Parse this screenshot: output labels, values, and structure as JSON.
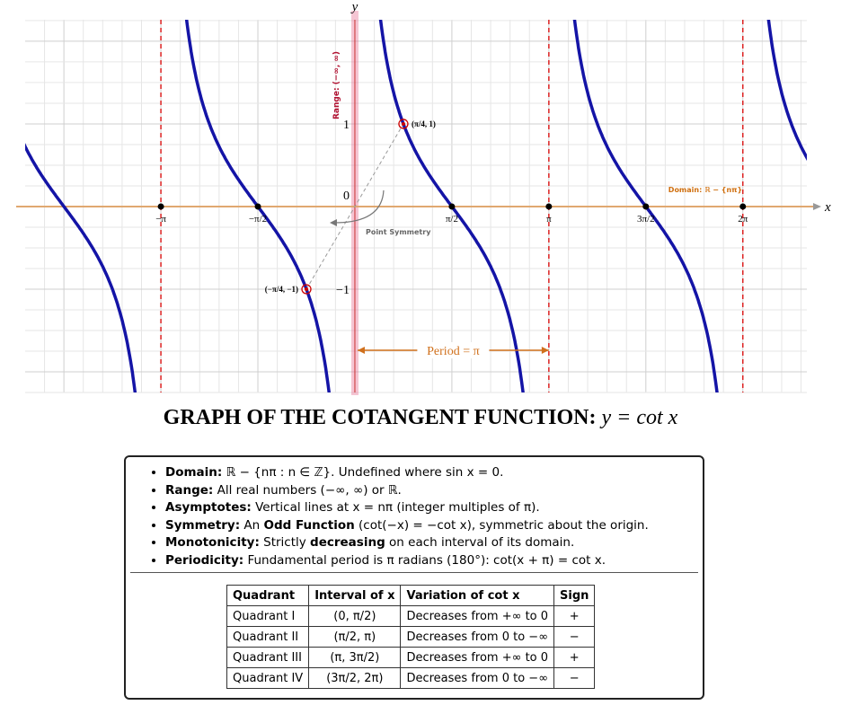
{
  "graph": {
    "axis_x": "x",
    "axis_y": "y",
    "xlim": [
      -5.34,
      7.32
    ],
    "ylim": [
      -2.25,
      2.26
    ],
    "xticks": [
      {
        "value": -3.1416,
        "label": "−π"
      },
      {
        "value": -1.5708,
        "label": "−π/2"
      },
      {
        "value": 1.5708,
        "label": "π/2"
      },
      {
        "value": 3.1416,
        "label": "π"
      },
      {
        "value": 4.7124,
        "label": "3π/2"
      },
      {
        "value": 6.2832,
        "label": "2π"
      }
    ],
    "yticks": [
      {
        "value": 0,
        "label": "0"
      },
      1,
      {
        "value": -1,
        "label": "−1"
      }
    ],
    "asymptotes": [
      -3.1416,
      0,
      3.1416,
      6.2832
    ],
    "range_label": "Range: (−∞, ∞)",
    "domain_label": "Domain: ℝ − {nπ}",
    "points": [
      {
        "x": 0.7854,
        "y": 1,
        "label": "(π/4, 1)"
      },
      {
        "x": -0.7854,
        "y": -1,
        "label": "(−π/4, −1)"
      }
    ],
    "symmetry_label": "Point Symmetry",
    "period": [
      0,
      3.1416
    ],
    "period_label": "Period = π"
  },
  "title": "GRAPH OF THE COTANGENT FUNCTION:",
  "title_math": "y = cot x",
  "bullets": [
    [
      "Domain:",
      " ℝ − {nπ : n ∈ ℤ}. Undefined where sin x = 0."
    ],
    [
      "Range:",
      " All real numbers (−∞, ∞) or ℝ."
    ],
    [
      "Asymptotes:",
      " Vertical lines at x = nπ (integer multiples of π)."
    ],
    [
      "Symmetry:",
      " An ",
      "Odd Function",
      " (cot(−x) = −cot x), symmetric about the origin."
    ],
    [
      "Monotonicity:",
      " Strictly ",
      "decreasing",
      " on each interval of its domain."
    ],
    [
      "Periodicity:",
      " Fundamental period is π radians (180°): cot(x + π) = cot x."
    ]
  ],
  "table": {
    "header": [
      "Quadrant",
      "Interval of x",
      "Variation of cot x",
      "Sign"
    ],
    "rows": [
      [
        "Quadrant I",
        "(0, π/2)",
        "Decreases from +∞ to 0",
        "+"
      ],
      [
        "Quadrant II",
        "(π/2, π)",
        "Decreases from 0 to −∞",
        "−"
      ],
      [
        "Quadrant III",
        "(π, 3π/2)",
        "Decreases from +∞ to 0",
        "+"
      ],
      [
        "Quadrant IV",
        "(3π/2, 2π)",
        "Decreases from 0 to −∞",
        "−"
      ]
    ]
  }
}
